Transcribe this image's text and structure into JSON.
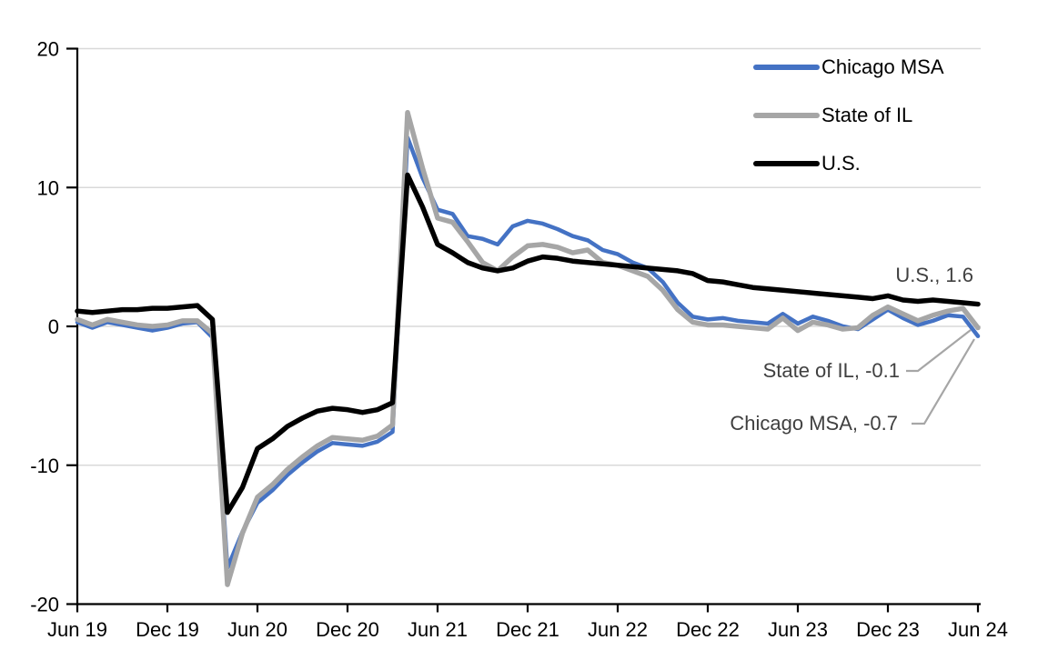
{
  "figure": {
    "background": "#ffffff"
  },
  "colors": {
    "chicago_msa": "#4472c4",
    "state_of_il": "#a6a6a6",
    "us": "#000000",
    "gridline": "#d9d9d9",
    "axis": "#000000",
    "annotation_text": "#404040",
    "leader_line": "#a6a6a6"
  },
  "annotations": {
    "us_label": "U.S., 1.6",
    "il_label": "State of IL, -0.1",
    "chicago_label": "Chicago MSA, -0.7"
  },
  "chart_data": {
    "type": "line",
    "title": "",
    "xlabel": "",
    "ylabel": "",
    "ylim": [
      -20,
      20
    ],
    "y_ticks": [
      20,
      10,
      0,
      -10,
      -20
    ],
    "grid": "horizontal",
    "legend_position": "top-right",
    "x_tick_interval": 6,
    "x_tick_labels": [
      "Jun 19",
      "Dec 19",
      "Jun 20",
      "Dec 20",
      "Jun 21",
      "Dec 21",
      "Jun 22",
      "Dec 22",
      "Jun 23",
      "Dec 23",
      "Jun 24"
    ],
    "months": [
      "Jun 19",
      "Jul 19",
      "Aug 19",
      "Sep 19",
      "Oct 19",
      "Nov 19",
      "Dec 19",
      "Jan 20",
      "Feb 20",
      "Mar 20",
      "Apr 20",
      "May 20",
      "Jun 20",
      "Jul 20",
      "Aug 20",
      "Sep 20",
      "Oct 20",
      "Nov 20",
      "Dec 20",
      "Jan 21",
      "Feb 21",
      "Mar 21",
      "Apr 21",
      "May 21",
      "Jun 21",
      "Jul 21",
      "Aug 21",
      "Sep 21",
      "Oct 21",
      "Nov 21",
      "Dec 21",
      "Jan 22",
      "Feb 22",
      "Mar 22",
      "Apr 22",
      "May 22",
      "Jun 22",
      "Jul 22",
      "Aug 22",
      "Sep 22",
      "Oct 22",
      "Nov 22",
      "Dec 22",
      "Jan 23",
      "Feb 23",
      "Mar 23",
      "Apr 23",
      "May 23",
      "Jun 23",
      "Jul 23",
      "Aug 23",
      "Sep 23",
      "Oct 23",
      "Nov 23",
      "Dec 23",
      "Jan 24",
      "Feb 24",
      "Mar 24",
      "Apr 24",
      "May 24",
      "Jun 24"
    ],
    "series": [
      {
        "name": "Chicago MSA",
        "color": "#4472c4",
        "line_width": 4.5,
        "end_value": -0.7,
        "values": [
          0.3,
          -0.1,
          0.3,
          0.1,
          -0.1,
          -0.3,
          -0.1,
          0.2,
          0.3,
          -0.8,
          -17.4,
          -14.8,
          -12.7,
          -11.8,
          -10.7,
          -9.8,
          -9.0,
          -8.4,
          -8.5,
          -8.6,
          -8.3,
          -7.6,
          13.6,
          10.7,
          8.4,
          8.1,
          6.5,
          6.3,
          5.9,
          7.2,
          7.6,
          7.4,
          7.0,
          6.5,
          6.2,
          5.5,
          5.2,
          4.6,
          4.2,
          3.2,
          1.7,
          0.7,
          0.5,
          0.6,
          0.4,
          0.3,
          0.2,
          0.9,
          0.2,
          0.7,
          0.4,
          0.0,
          -0.2,
          0.5,
          1.2,
          0.6,
          0.1,
          0.4,
          0.8,
          0.7,
          -0.7
        ]
      },
      {
        "name": "State of IL",
        "color": "#a6a6a6",
        "line_width": 5.5,
        "end_value": -0.1,
        "values": [
          0.5,
          0.1,
          0.5,
          0.3,
          0.1,
          0.0,
          0.1,
          0.4,
          0.4,
          -0.5,
          -18.6,
          -14.9,
          -12.3,
          -11.4,
          -10.3,
          -9.4,
          -8.6,
          -8.0,
          -8.1,
          -8.2,
          -7.9,
          -7.1,
          15.4,
          11.4,
          7.8,
          7.5,
          6.1,
          4.6,
          4.0,
          5.0,
          5.8,
          5.9,
          5.7,
          5.3,
          5.5,
          4.6,
          4.4,
          4.0,
          3.6,
          2.6,
          1.2,
          0.3,
          0.1,
          0.1,
          0.0,
          -0.1,
          -0.2,
          0.6,
          -0.3,
          0.3,
          0.1,
          -0.2,
          -0.1,
          0.8,
          1.4,
          0.9,
          0.4,
          0.8,
          1.1,
          1.3,
          -0.1
        ]
      },
      {
        "name": "U.S.",
        "color": "#000000",
        "line_width": 5.5,
        "end_value": 1.6,
        "values": [
          1.1,
          1.0,
          1.1,
          1.2,
          1.2,
          1.3,
          1.3,
          1.4,
          1.5,
          0.5,
          -13.4,
          -11.6,
          -8.8,
          -8.1,
          -7.2,
          -6.6,
          -6.1,
          -5.9,
          -6.0,
          -6.2,
          -6.0,
          -5.5,
          10.9,
          8.6,
          5.9,
          5.3,
          4.6,
          4.2,
          4.0,
          4.2,
          4.7,
          5.0,
          4.9,
          4.7,
          4.6,
          4.5,
          4.4,
          4.3,
          4.2,
          4.1,
          4.0,
          3.8,
          3.3,
          3.2,
          3.0,
          2.8,
          2.7,
          2.6,
          2.5,
          2.4,
          2.3,
          2.2,
          2.1,
          2.0,
          2.2,
          1.9,
          1.8,
          1.9,
          1.8,
          1.7,
          1.6
        ]
      }
    ]
  }
}
